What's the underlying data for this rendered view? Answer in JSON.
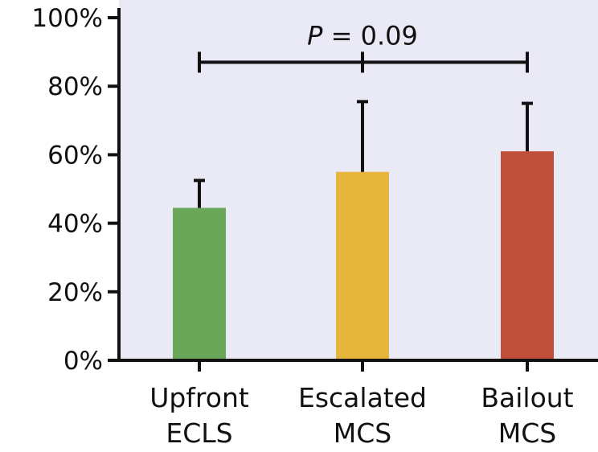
{
  "chart_data": {
    "type": "bar",
    "categories": [
      [
        "Upfront",
        "ECLS"
      ],
      [
        "Escalated",
        "MCS"
      ],
      [
        "Bailout",
        "MCS"
      ]
    ],
    "values": [
      44.5,
      55,
      61
    ],
    "error_upper": [
      52.5,
      75.5,
      75
    ],
    "bar_colors": [
      "#6aa758",
      "#e6b53c",
      "#c0503a"
    ],
    "plot_background": "#eaeaf7",
    "ylim": [
      0,
      100
    ],
    "yticks": [
      0,
      20,
      40,
      60,
      80,
      100
    ],
    "ytick_labels": [
      "0%",
      "20%",
      "40%",
      "60%",
      "80%",
      "100%"
    ],
    "title": "",
    "xlabel": "",
    "ylabel": "",
    "annotation": {
      "letter": "P",
      "rest": " = 0.09",
      "bracket_level": 87
    }
  }
}
